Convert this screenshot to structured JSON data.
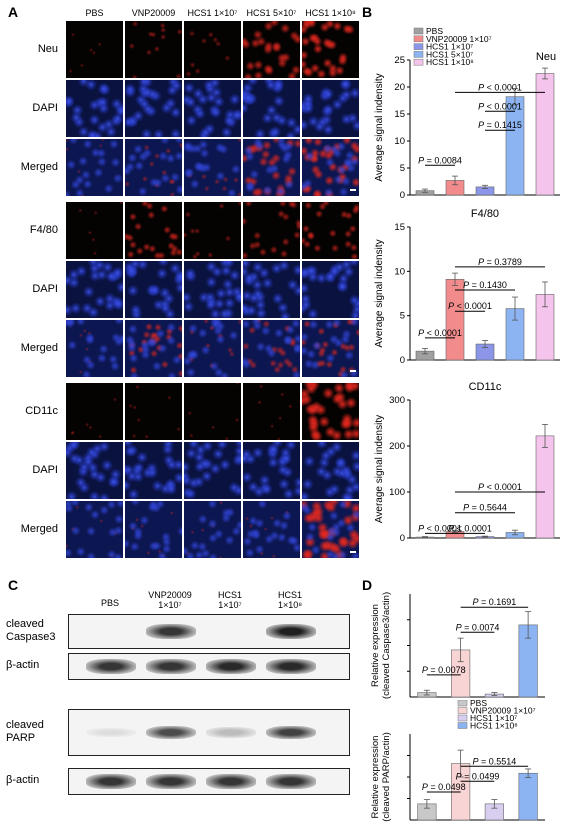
{
  "panels": {
    "a": "A",
    "b": "B",
    "c": "C",
    "d": "D"
  },
  "panel_a": {
    "columns": [
      "PBS",
      "VNP20009",
      "HCS1 1×10⁷",
      "HCS1 5×10⁷",
      "HCS1 1×10⁸"
    ],
    "rows": [
      {
        "label": "Neu",
        "type": "marker",
        "intensity": [
          0.05,
          0.25,
          0.15,
          0.7,
          0.85
        ]
      },
      {
        "label": "DAPI",
        "type": "dapi"
      },
      {
        "label": "Merged",
        "type": "merged",
        "intensity": [
          0.05,
          0.25,
          0.15,
          0.7,
          0.85
        ]
      },
      {
        "label": "F4/80",
        "type": "marker",
        "intensity": [
          0.05,
          0.6,
          0.2,
          0.45,
          0.55
        ]
      },
      {
        "label": "DAPI",
        "type": "dapi"
      },
      {
        "label": "Merged",
        "type": "merged",
        "intensity": [
          0.05,
          0.6,
          0.2,
          0.45,
          0.55
        ]
      },
      {
        "label": "CD11c",
        "type": "marker",
        "intensity": [
          0.05,
          0.12,
          0.08,
          0.1,
          0.95
        ]
      },
      {
        "label": "DAPI",
        "type": "dapi"
      },
      {
        "label": "Merged",
        "type": "merged",
        "intensity": [
          0.05,
          0.12,
          0.08,
          0.1,
          0.95
        ]
      }
    ]
  },
  "chart_data": [
    {
      "type": "bar",
      "title": "Neu",
      "ylabel": "Average signal indensity",
      "categories": [
        "PBS",
        "VNP20009 1×10⁷",
        "HCS1 1×10⁷",
        "HCS1 5×10⁷",
        "HCS1 1×10⁸"
      ],
      "values": [
        0.8,
        2.7,
        1.5,
        18.2,
        22.5
      ],
      "errors": [
        0.3,
        0.8,
        0.3,
        1.5,
        1.0
      ],
      "colors": [
        "#a0a0a0",
        "#f28c8c",
        "#8c96e8",
        "#8cb4f2",
        "#f5c4ec"
      ],
      "ylim": [
        0,
        25
      ],
      "yticks": [
        0,
        5,
        10,
        15,
        20,
        25
      ],
      "legend": [
        "PBS",
        "VNP20009 1×10⁷",
        "HCS1 1×10⁷",
        "HCS1 5×10⁷",
        "HCS1 1×10⁸"
      ],
      "comparisons": [
        {
          "from": 1,
          "to": 4,
          "label": "P < 0.0001",
          "level": 19
        },
        {
          "from": 2,
          "to": 3,
          "label": "P < 0.0001",
          "level": 15.5
        },
        {
          "from": 2,
          "to": 3,
          "label": "P = 0.1415",
          "level": 12
        },
        {
          "from": 0,
          "to": 1,
          "label": "P = 0.0084",
          "level": 5.5
        }
      ]
    },
    {
      "type": "bar",
      "title": "F4/80",
      "ylabel": "Average signal indensity",
      "categories": [
        "PBS",
        "VNP20009 1×10⁷",
        "HCS1 1×10⁷",
        "HCS1 5×10⁷",
        "HCS1 1×10⁸"
      ],
      "values": [
        1.0,
        9.1,
        1.8,
        5.8,
        7.4
      ],
      "errors": [
        0.3,
        0.7,
        0.4,
        1.3,
        1.4
      ],
      "colors": [
        "#a0a0a0",
        "#f28c8c",
        "#8c96e8",
        "#8cb4f2",
        "#f5c4ec"
      ],
      "ylim": [
        0,
        15
      ],
      "yticks": [
        0,
        5,
        10,
        15
      ],
      "comparisons": [
        {
          "from": 1,
          "to": 4,
          "label": "P = 0.3789",
          "level": 10.5
        },
        {
          "from": 1,
          "to": 3,
          "label": "P = 0.1430",
          "level": 7.9
        },
        {
          "from": 1,
          "to": 2,
          "label": "P < 0.0001",
          "level": 5.5
        },
        {
          "from": 0,
          "to": 1,
          "label": "P < 0.0001",
          "level": 2.5
        }
      ]
    },
    {
      "type": "bar",
      "title": "CD11c",
      "ylabel": "Average signal indensity",
      "categories": [
        "PBS",
        "VNP20009 1×10⁷",
        "HCS1 1×10⁷",
        "HCS1 5×10⁷",
        "HCS1 1×10⁸"
      ],
      "values": [
        2,
        14,
        3,
        12,
        222
      ],
      "errors": [
        1,
        2,
        1,
        5,
        25
      ],
      "colors": [
        "#a0a0a0",
        "#f28c8c",
        "#8c96e8",
        "#8cb4f2",
        "#f5c4ec"
      ],
      "ylim": [
        0,
        300
      ],
      "yticks": [
        0,
        100,
        200,
        300
      ],
      "comparisons": [
        {
          "from": 1,
          "to": 4,
          "label": "P < 0.0001",
          "level": 100
        },
        {
          "from": 1,
          "to": 3,
          "label": "P = 0.5644",
          "level": 55
        },
        {
          "from": 1,
          "to": 2,
          "label": "P < 0.0001",
          "level": 10
        },
        {
          "from": 0,
          "to": 1,
          "label": "P < 0.0001",
          "level": 10
        }
      ]
    },
    {
      "type": "bar",
      "ylabel": "Relative expression (cleaved Caspase3/actin)",
      "categories": [
        "PBS",
        "VNP20009 1×10⁷",
        "HCS1 1×10⁷",
        "HCS1 1×10⁸"
      ],
      "values": [
        0.15,
        1.6,
        0.1,
        2.45
      ],
      "errors": [
        0.08,
        0.4,
        0.05,
        0.45
      ],
      "colors": [
        "#c8c8c8",
        "#f8d4d4",
        "#d8cef0",
        "#8cb4f2"
      ],
      "ylim": [
        0,
        3.5
      ],
      "comparisons": [
        {
          "from": 1,
          "to": 3,
          "label": "P = 0.1691",
          "level": 3.05
        },
        {
          "from": 1,
          "to": 2,
          "label": "P = 0.0074",
          "level": 2.2
        },
        {
          "from": 0,
          "to": 1,
          "label": "P = 0.0078",
          "level": 0.75
        }
      ]
    },
    {
      "type": "bar",
      "ylabel": "Relative expression (cleaved PARP/actin)",
      "categories": [
        "PBS",
        "VNP20009 1×10⁷",
        "HCS1 1×10⁷",
        "HCS1 1×10⁸"
      ],
      "values": [
        0.3,
        1.05,
        0.3,
        0.87
      ],
      "errors": [
        0.08,
        0.25,
        0.08,
        0.08
      ],
      "colors": [
        "#c8c8c8",
        "#f8d4d4",
        "#d8cef0",
        "#8cb4f2"
      ],
      "ylim": [
        0,
        1.6
      ],
      "legend": [
        "PBS",
        "VNP20009 1×10⁷",
        "HCS1 1×10⁷",
        "HCS1 1×10⁸"
      ],
      "comparisons": [
        {
          "from": 1,
          "to": 3,
          "label": "P = 0.5514",
          "level": 1.0
        },
        {
          "from": 1,
          "to": 2,
          "label": "P = 0.0499",
          "level": 0.72
        },
        {
          "from": 0,
          "to": 1,
          "label": "P = 0.0498",
          "level": 0.52
        }
      ]
    }
  ],
  "panel_c": {
    "columns": [
      "PBS",
      "VNP20009\n1×10⁷",
      "HCS1\n1×10⁷",
      "HCS1\n1×10⁸"
    ],
    "blots": [
      {
        "label": "cleaved\nCaspase3",
        "bands": [
          0.0,
          0.85,
          0.0,
          0.95
        ]
      },
      {
        "label": "β-actin",
        "bands": [
          0.85,
          0.85,
          0.9,
          0.9
        ]
      },
      {
        "label": "cleaved\nPARP",
        "bands": [
          0.1,
          0.75,
          0.25,
          0.8
        ]
      },
      {
        "label": "β-actin",
        "bands": [
          0.85,
          0.85,
          0.85,
          0.85
        ]
      }
    ]
  }
}
